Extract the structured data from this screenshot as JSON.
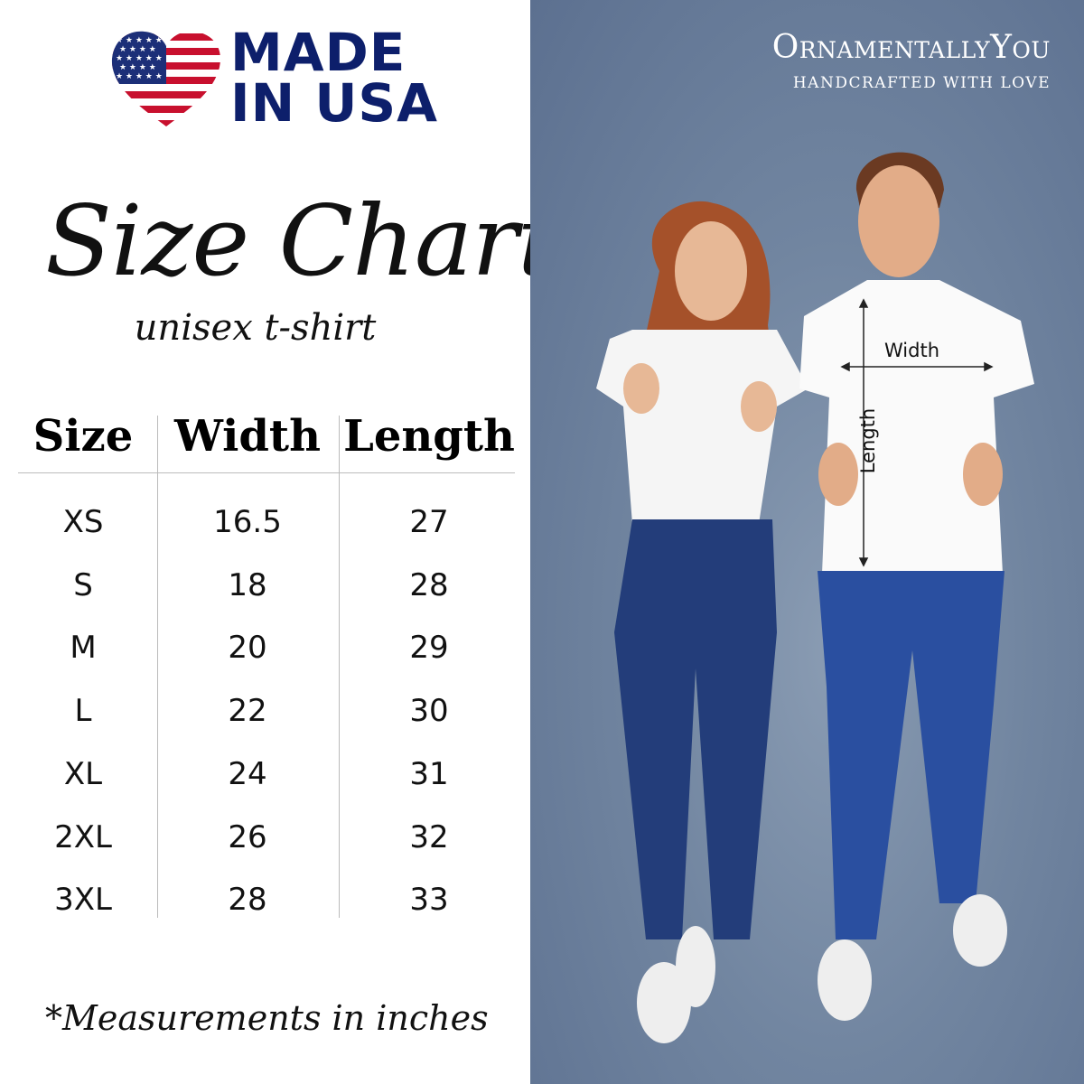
{
  "badge": {
    "line1": "MADE",
    "line2": "IN USA",
    "colors": {
      "navy": "#0d1f6b",
      "red": "#c8102e"
    }
  },
  "title": "Size Chart",
  "subtitle": "unisex t-shirt",
  "table": {
    "headers": [
      "Size",
      "Width",
      "Length"
    ],
    "rows": [
      [
        "XS",
        "16.5",
        "27"
      ],
      [
        "S",
        "18",
        "28"
      ],
      [
        "M",
        "20",
        "29"
      ],
      [
        "L",
        "22",
        "30"
      ],
      [
        "XL",
        "24",
        "31"
      ],
      [
        "2XL",
        "26",
        "32"
      ],
      [
        "3XL",
        "28",
        "33"
      ]
    ]
  },
  "note": "*Measurements in inches",
  "brand": {
    "name": "OrnamentallyYou",
    "tagline": "HANDCRAFTED WITH LOVE"
  },
  "photo": {
    "width_label": "Width",
    "length_label": "Length"
  }
}
